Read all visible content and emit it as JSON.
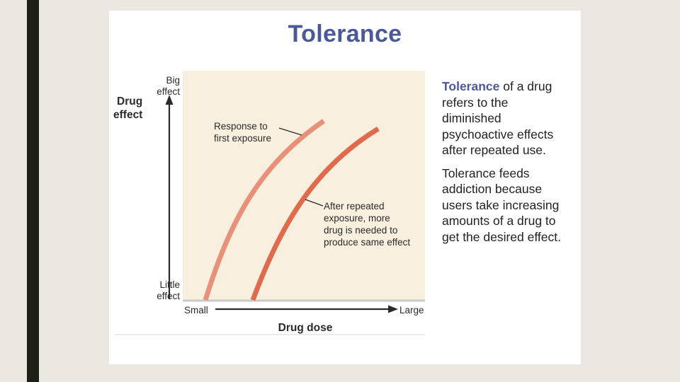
{
  "slide": {
    "title": "Tolerance",
    "paragraph1": {
      "term": "Tolerance",
      "rest": " of a drug refers to the diminished psychoactive effects after repeated use."
    },
    "paragraph2": "Tolerance feeds addiction because users take increasing amounts of a drug to get the desired effect."
  },
  "diagram": {
    "y_axis_title": [
      "Drug",
      "effect"
    ],
    "y_top_label": [
      "Big",
      "effect"
    ],
    "y_bottom_label": [
      "Little",
      "effect"
    ],
    "x_axis_title": "Drug dose",
    "x_left_label": "Small",
    "x_right_label": "Large",
    "curve1_label": [
      "Response to",
      "first exposure"
    ],
    "curve2_label": [
      "After repeated",
      "exposure, more",
      "drug is needed to",
      "produce same effect"
    ],
    "colors": {
      "plot_background": "#f8efdf",
      "curve1": "#e8917a",
      "curve2": "#df6a4c",
      "axis": "#2a2a2a",
      "baseline": "#c9c9c9"
    }
  }
}
